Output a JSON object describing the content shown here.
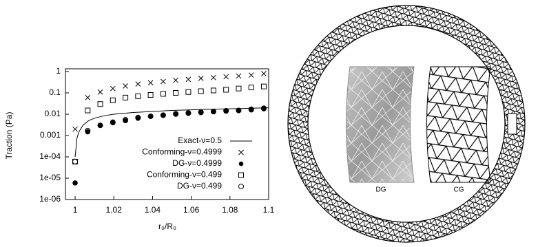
{
  "chart_data": {
    "type": "scatter",
    "log_y": true,
    "x_label": "r₀/R₀",
    "y_label": "Traction (Pa)",
    "xlim": [
      0.995,
      1.1
    ],
    "xticks": [
      1,
      1.02,
      1.04,
      1.06,
      1.08,
      1.1
    ],
    "ylim": [
      1e-06,
      1
    ],
    "yticks": [
      {
        "value": 1e-06,
        "label": "1e-06"
      },
      {
        "value": 1e-05,
        "label": "1e-05"
      },
      {
        "value": 0.0001,
        "label": "1e-04"
      },
      0.001,
      0.01,
      0.1,
      1
    ],
    "legend": "lower right",
    "series": [
      {
        "name": "Exact-ν=0.5",
        "marker": "line",
        "color": "#000000",
        "x": [
          1,
          1.001,
          1.002,
          1.004,
          1.007,
          1.01,
          1.015,
          1.02,
          1.03,
          1.04,
          1.05,
          1.06,
          1.07,
          1.08,
          1.09,
          1.1
        ],
        "values": [
          0.0001,
          0.0008,
          0.0015,
          0.003,
          0.005,
          0.0065,
          0.0085,
          0.01,
          0.012,
          0.0135,
          0.015,
          0.016,
          0.017,
          0.018,
          0.019,
          0.02
        ]
      },
      {
        "name": "Conforming-ν=0.4999",
        "marker": "x",
        "color": "#000000",
        "x": [
          1,
          1.0065,
          1.013,
          1.0195,
          1.026,
          1.0325,
          1.039,
          1.0455,
          1.052,
          1.0585,
          1.065,
          1.0715,
          1.078,
          1.0845,
          1.091,
          1.0975
        ],
        "values": [
          0.002,
          0.06,
          0.11,
          0.16,
          0.21,
          0.26,
          0.3,
          0.34,
          0.39,
          0.43,
          0.48,
          0.52,
          0.57,
          0.62,
          0.68,
          0.8
        ]
      },
      {
        "name": "DG-ν=0.4999",
        "marker": "dot",
        "color": "#000000",
        "x": [
          1,
          1.0065,
          1.013,
          1.0195,
          1.026,
          1.0325,
          1.039,
          1.0455,
          1.052,
          1.0585,
          1.065,
          1.0715,
          1.078,
          1.0845,
          1.091,
          1.0975
        ],
        "values": [
          6e-06,
          0.0015,
          0.003,
          0.004,
          0.005,
          0.0065,
          0.008,
          0.009,
          0.01,
          0.011,
          0.012,
          0.013,
          0.014,
          0.015,
          0.016,
          0.018
        ]
      },
      {
        "name": "Conforming-ν=0.499",
        "marker": "square",
        "color": "#000000",
        "x": [
          1,
          1.0065,
          1.013,
          1.0195,
          1.026,
          1.0325,
          1.039,
          1.0455,
          1.052,
          1.0585,
          1.065,
          1.0715,
          1.078,
          1.0845,
          1.091,
          1.0975
        ],
        "values": [
          6e-05,
          0.015,
          0.03,
          0.045,
          0.06,
          0.07,
          0.08,
          0.09,
          0.1,
          0.11,
          0.12,
          0.13,
          0.14,
          0.16,
          0.18,
          0.2
        ]
      },
      {
        "name": "DG-ν=0.499",
        "marker": "circle",
        "color": "#000000",
        "x": [
          1,
          1.0065,
          1.013,
          1.0195,
          1.026,
          1.0325,
          1.039,
          1.0455,
          1.052,
          1.0585,
          1.065,
          1.0715,
          1.078,
          1.0845,
          1.091,
          1.0975
        ],
        "values": [
          6e-05,
          0.0017,
          0.003,
          0.0042,
          0.0055,
          0.007,
          0.008,
          0.009,
          0.0105,
          0.0115,
          0.0125,
          0.0135,
          0.0145,
          0.015,
          0.017,
          0.019
        ]
      }
    ]
  },
  "mesh_panel": {
    "labels": [
      "DG",
      "CG"
    ]
  }
}
